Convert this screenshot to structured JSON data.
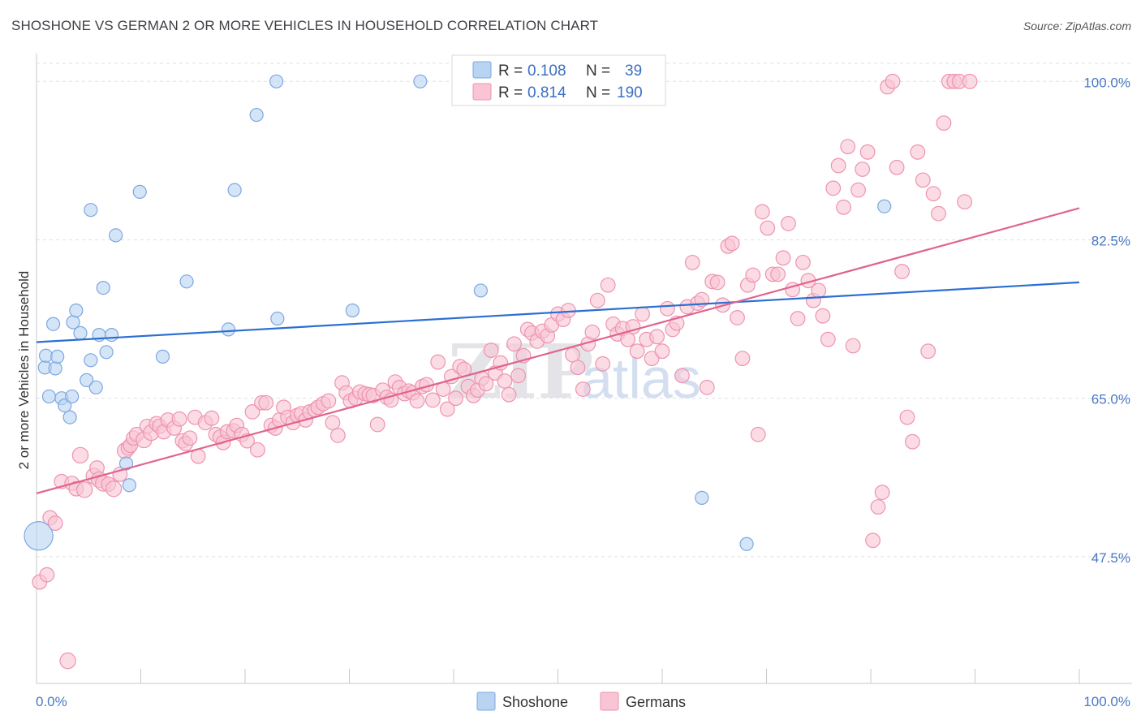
{
  "title": "SHOSHONE VS GERMAN 2 OR MORE VEHICLES IN HOUSEHOLD CORRELATION CHART",
  "source": "Source: ZipAtlas.com",
  "watermark": {
    "zip": "ZIP",
    "atlas": "atlas"
  },
  "legend_top": {
    "r_label": "R =",
    "n_label": "N =",
    "rows": [
      {
        "series": "Shoshone",
        "r": "0.108",
        "n": "39"
      },
      {
        "series": "Germans",
        "r": "0.814",
        "n": "190"
      }
    ]
  },
  "colors": {
    "shoshone_fill": "#b9d3f3",
    "shoshone_stroke": "#7da7e0",
    "shoshone_line": "#2a6fd1",
    "germans_fill": "#f9c4d3",
    "germans_stroke": "#ee93b0",
    "germans_line": "#e0648d",
    "grid": "#dde1ea",
    "tick_label": "#4a78c2"
  },
  "chart_data": {
    "type": "scatter",
    "title": "SHOSHONE VS GERMAN 2 OR MORE VEHICLES IN HOUSEHOLD CORRELATION CHART",
    "xlabel": "",
    "ylabel": "2 or more Vehicles in Household",
    "xlim": [
      0,
      100
    ],
    "ylim": [
      33.5,
      102
    ],
    "x_ticks": [
      "0.0%",
      "100.0%"
    ],
    "y_ticks": [
      {
        "value": 47.5,
        "label": "47.5%"
      },
      {
        "value": 65.0,
        "label": "65.0%"
      },
      {
        "value": 82.5,
        "label": "82.5%"
      },
      {
        "value": 100.0,
        "label": "100.0%"
      }
    ],
    "grid": true,
    "legend_position": "top-center",
    "series": [
      {
        "name": "Shoshone",
        "trend": {
          "x": [
            0,
            100
          ],
          "y": [
            71.2,
            77.8
          ]
        },
        "points": [
          [
            0.2,
            49.8,
            2.2
          ],
          [
            0.8,
            68.4,
            1
          ],
          [
            0.9,
            69.7,
            1
          ],
          [
            1.2,
            65.2,
            1
          ],
          [
            1.6,
            73.2,
            1
          ],
          [
            1.8,
            68.3,
            1
          ],
          [
            2.0,
            69.6,
            1
          ],
          [
            2.4,
            65.0,
            1
          ],
          [
            2.7,
            64.2,
            1
          ],
          [
            3.2,
            62.9,
            1
          ],
          [
            3.4,
            65.2,
            1
          ],
          [
            3.5,
            73.4,
            1
          ],
          [
            3.8,
            74.7,
            1
          ],
          [
            4.2,
            72.2,
            1
          ],
          [
            4.8,
            67.0,
            1
          ],
          [
            5.2,
            85.8,
            1
          ],
          [
            5.2,
            69.2,
            1
          ],
          [
            5.7,
            66.2,
            1
          ],
          [
            6.0,
            72.0,
            1
          ],
          [
            6.4,
            77.2,
            1
          ],
          [
            6.7,
            70.1,
            1
          ],
          [
            7.2,
            72.0,
            1
          ],
          [
            7.6,
            83.0,
            1
          ],
          [
            8.6,
            57.8,
            1
          ],
          [
            8.9,
            55.4,
            1
          ],
          [
            9.9,
            87.8,
            1
          ],
          [
            12.1,
            69.6,
            1
          ],
          [
            14.4,
            77.9,
            1
          ],
          [
            18.4,
            72.6,
            1
          ],
          [
            19.0,
            88.0,
            1
          ],
          [
            21.1,
            96.3,
            1
          ],
          [
            23.0,
            100.0,
            1
          ],
          [
            23.1,
            73.8,
            1
          ],
          [
            30.3,
            74.7,
            1
          ],
          [
            36.8,
            100.0,
            1
          ],
          [
            42.6,
            76.9,
            1
          ],
          [
            63.8,
            54.0,
            1
          ],
          [
            68.1,
            48.9,
            1
          ],
          [
            81.3,
            86.2,
            1
          ]
        ]
      },
      {
        "name": "Germans",
        "trend": {
          "x": [
            0,
            100
          ],
          "y": [
            54.5,
            86.0
          ]
        },
        "points": [
          [
            0.3,
            44.7,
            1.1
          ],
          [
            1.0,
            45.5,
            1.1
          ],
          [
            1.3,
            51.8,
            1.1
          ],
          [
            1.8,
            51.2,
            1.1
          ],
          [
            2.4,
            55.8,
            1.1
          ],
          [
            3.0,
            36.0,
            1.2
          ],
          [
            3.4,
            55.6,
            1.1
          ],
          [
            3.8,
            55.0,
            1.1
          ],
          [
            4.2,
            58.7,
            1.2
          ],
          [
            4.6,
            54.9,
            1.2
          ],
          [
            5.5,
            56.4,
            1.2
          ],
          [
            5.8,
            57.3,
            1.1
          ],
          [
            6.0,
            56.0,
            1.2
          ],
          [
            6.4,
            55.6,
            1.2
          ],
          [
            6.9,
            55.5,
            1.1
          ],
          [
            7.4,
            55.0,
            1.2
          ],
          [
            8.0,
            56.6,
            1.1
          ],
          [
            8.5,
            59.2,
            1.2
          ],
          [
            8.8,
            59.5,
            1.1
          ],
          [
            9.0,
            59.8,
            1.1
          ],
          [
            9.3,
            60.6,
            1.1
          ],
          [
            9.6,
            61.0,
            1.1
          ],
          [
            10.3,
            60.4,
            1.2
          ],
          [
            10.6,
            61.9,
            1.1
          ],
          [
            11.0,
            61.2,
            1.2
          ],
          [
            11.5,
            62.2,
            1.1
          ],
          [
            11.8,
            61.9,
            1.1
          ],
          [
            12.2,
            61.3,
            1.1
          ],
          [
            12.6,
            62.6,
            1.1
          ],
          [
            13.2,
            61.7,
            1.1
          ],
          [
            13.7,
            62.7,
            1.1
          ],
          [
            14.0,
            60.3,
            1.1
          ],
          [
            14.3,
            60.0,
            1.1
          ],
          [
            14.7,
            60.6,
            1.1
          ],
          [
            15.2,
            62.9,
            1.1
          ],
          [
            15.5,
            58.6,
            1.1
          ],
          [
            16.2,
            62.3,
            1.1
          ],
          [
            16.8,
            62.8,
            1.1
          ],
          [
            17.2,
            61.0,
            1.1
          ],
          [
            17.6,
            60.7,
            1.1
          ],
          [
            17.9,
            60.1,
            1.1
          ],
          [
            18.3,
            61.3,
            1.1
          ],
          [
            18.9,
            61.4,
            1.1
          ],
          [
            19.2,
            62.0,
            1.1
          ],
          [
            19.7,
            61.0,
            1.1
          ],
          [
            20.2,
            60.3,
            1.1
          ],
          [
            20.7,
            63.5,
            1.1
          ],
          [
            21.2,
            59.3,
            1.1
          ],
          [
            21.6,
            64.5,
            1.1
          ],
          [
            22.0,
            64.5,
            1.1
          ],
          [
            22.5,
            62.0,
            1.1
          ],
          [
            22.9,
            61.7,
            1.1
          ],
          [
            23.3,
            62.6,
            1.1
          ],
          [
            23.7,
            64.0,
            1.1
          ],
          [
            24.1,
            62.9,
            1.1
          ],
          [
            24.6,
            62.3,
            1.1
          ],
          [
            25.0,
            63.1,
            1.1
          ],
          [
            25.4,
            63.3,
            1.1
          ],
          [
            25.8,
            62.6,
            1.1
          ],
          [
            26.2,
            63.5,
            1.1
          ],
          [
            26.7,
            63.7,
            1.1
          ],
          [
            27.0,
            64.0,
            1.1
          ],
          [
            27.5,
            64.4,
            1.1
          ],
          [
            28.0,
            64.7,
            1.1
          ],
          [
            28.4,
            62.3,
            1.1
          ],
          [
            28.9,
            60.9,
            1.1
          ],
          [
            29.3,
            66.7,
            1.1
          ],
          [
            29.7,
            65.6,
            1.1
          ],
          [
            30.1,
            64.7,
            1.1
          ],
          [
            30.6,
            65.0,
            1.1
          ],
          [
            31.0,
            65.7,
            1.1
          ],
          [
            31.5,
            65.5,
            1.1
          ],
          [
            31.9,
            65.4,
            1.1
          ],
          [
            32.3,
            65.3,
            1.1
          ],
          [
            32.7,
            62.1,
            1.1
          ],
          [
            33.2,
            65.9,
            1.1
          ],
          [
            33.6,
            65.1,
            1.1
          ],
          [
            34.0,
            64.8,
            1.1
          ],
          [
            34.4,
            66.8,
            1.1
          ],
          [
            34.8,
            66.2,
            1.1
          ],
          [
            35.3,
            65.5,
            1.1
          ],
          [
            35.7,
            65.8,
            1.1
          ],
          [
            36.1,
            65.6,
            1.1
          ],
          [
            36.5,
            64.7,
            1.1
          ],
          [
            37.0,
            66.3,
            1.1
          ],
          [
            37.4,
            66.5,
            1.1
          ],
          [
            38.0,
            64.8,
            1.1
          ],
          [
            38.5,
            69.0,
            1.1
          ],
          [
            39.0,
            66.0,
            1.1
          ],
          [
            39.4,
            63.8,
            1.1
          ],
          [
            39.8,
            67.4,
            1.1
          ],
          [
            40.2,
            65.0,
            1.1
          ],
          [
            40.6,
            68.5,
            1.1
          ],
          [
            41.0,
            68.2,
            1.1
          ],
          [
            41.4,
            66.3,
            1.1
          ],
          [
            41.9,
            65.3,
            1.1
          ],
          [
            42.3,
            65.9,
            1.1
          ],
          [
            42.7,
            67.2,
            1.1
          ],
          [
            43.1,
            66.6,
            1.1
          ],
          [
            43.6,
            70.3,
            1.1
          ],
          [
            44.0,
            67.8,
            1.1
          ],
          [
            44.5,
            68.9,
            1.1
          ],
          [
            44.9,
            66.9,
            1.1
          ],
          [
            45.3,
            65.4,
            1.1
          ],
          [
            45.8,
            71.0,
            1.1
          ],
          [
            46.2,
            67.5,
            1.1
          ],
          [
            46.7,
            69.7,
            1.1
          ],
          [
            47.1,
            72.6,
            1.1
          ],
          [
            47.5,
            72.2,
            1.1
          ],
          [
            48.0,
            71.3,
            1.1
          ],
          [
            48.5,
            72.4,
            1.1
          ],
          [
            49.0,
            71.9,
            1.1
          ],
          [
            49.4,
            73.1,
            1.1
          ],
          [
            50.0,
            74.3,
            1.1
          ],
          [
            50.5,
            73.7,
            1.1
          ],
          [
            51.0,
            74.7,
            1.1
          ],
          [
            51.4,
            69.8,
            1.1
          ],
          [
            51.9,
            68.4,
            1.1
          ],
          [
            52.4,
            66.0,
            1.1
          ],
          [
            52.9,
            71.0,
            1.1
          ],
          [
            53.3,
            72.3,
            1.1
          ],
          [
            53.8,
            75.8,
            1.1
          ],
          [
            54.3,
            68.8,
            1.1
          ],
          [
            54.8,
            77.5,
            1.1
          ],
          [
            55.3,
            73.2,
            1.1
          ],
          [
            55.7,
            72.1,
            1.1
          ],
          [
            56.2,
            72.7,
            1.1
          ],
          [
            56.7,
            71.5,
            1.1
          ],
          [
            57.2,
            72.9,
            1.1
          ],
          [
            57.6,
            70.2,
            1.1
          ],
          [
            58.1,
            74.3,
            1.1
          ],
          [
            58.5,
            71.5,
            1.1
          ],
          [
            59.0,
            69.4,
            1.1
          ],
          [
            59.5,
            71.8,
            1.1
          ],
          [
            60.0,
            70.2,
            1.1
          ],
          [
            60.5,
            74.9,
            1.1
          ],
          [
            61.0,
            72.6,
            1.1
          ],
          [
            61.4,
            73.3,
            1.1
          ],
          [
            61.9,
            67.5,
            1.1
          ],
          [
            62.4,
            75.1,
            1.1
          ],
          [
            62.9,
            80.0,
            1.1
          ],
          [
            63.4,
            75.5,
            1.1
          ],
          [
            63.8,
            75.9,
            1.1
          ],
          [
            64.3,
            66.2,
            1.1
          ],
          [
            64.8,
            77.9,
            1.1
          ],
          [
            65.3,
            77.8,
            1.1
          ],
          [
            65.8,
            75.3,
            1.1
          ],
          [
            66.3,
            81.8,
            1.1
          ],
          [
            66.7,
            82.1,
            1.1
          ],
          [
            67.2,
            73.9,
            1.1
          ],
          [
            67.7,
            69.4,
            1.1
          ],
          [
            68.2,
            77.5,
            1.1
          ],
          [
            68.7,
            78.6,
            1.1
          ],
          [
            69.2,
            61.0,
            1.1
          ],
          [
            69.6,
            85.6,
            1.1
          ],
          [
            70.1,
            83.8,
            1.1
          ],
          [
            70.6,
            78.7,
            1.1
          ],
          [
            71.1,
            78.7,
            1.1
          ],
          [
            71.6,
            80.5,
            1.1
          ],
          [
            72.1,
            84.3,
            1.1
          ],
          [
            72.5,
            77.0,
            1.1
          ],
          [
            73.0,
            73.8,
            1.1
          ],
          [
            73.5,
            80.0,
            1.1
          ],
          [
            74.0,
            78.0,
            1.1
          ],
          [
            74.5,
            75.8,
            1.1
          ],
          [
            75.0,
            76.9,
            1.1
          ],
          [
            75.4,
            74.1,
            1.1
          ],
          [
            75.9,
            71.5,
            1.1
          ],
          [
            76.4,
            88.2,
            1.1
          ],
          [
            76.9,
            90.7,
            1.1
          ],
          [
            77.4,
            86.1,
            1.1
          ],
          [
            77.8,
            92.8,
            1.1
          ],
          [
            78.3,
            70.8,
            1.1
          ],
          [
            78.8,
            88.0,
            1.1
          ],
          [
            79.2,
            90.3,
            1.1
          ],
          [
            79.7,
            92.2,
            1.1
          ],
          [
            80.2,
            49.3,
            1.1
          ],
          [
            80.7,
            53.0,
            1.1
          ],
          [
            81.1,
            54.6,
            1.1
          ],
          [
            81.6,
            99.4,
            1.1
          ],
          [
            82.1,
            100.0,
            1.1
          ],
          [
            82.5,
            90.5,
            1.1
          ],
          [
            83.0,
            79.0,
            1.1
          ],
          [
            83.5,
            62.9,
            1.1
          ],
          [
            84.0,
            60.2,
            1.1
          ],
          [
            84.5,
            92.2,
            1.1
          ],
          [
            85.0,
            89.1,
            1.1
          ],
          [
            85.5,
            70.2,
            1.1
          ],
          [
            86.0,
            87.6,
            1.1
          ],
          [
            86.5,
            85.4,
            1.1
          ],
          [
            87.0,
            95.4,
            1.1
          ],
          [
            87.5,
            100.0,
            1.1
          ],
          [
            88.0,
            100.0,
            1.1
          ],
          [
            88.5,
            100.0,
            1.1
          ],
          [
            89.0,
            86.7,
            1.1
          ],
          [
            89.5,
            100.0,
            1.1
          ]
        ]
      }
    ]
  }
}
